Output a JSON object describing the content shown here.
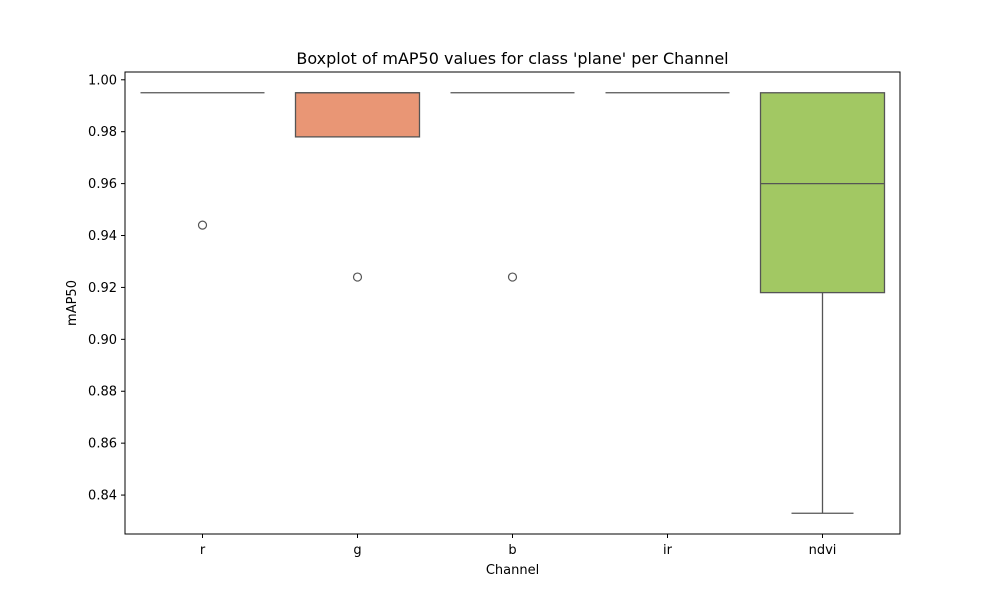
{
  "chart_data": {
    "type": "boxplot",
    "title": "Boxplot of mAP50 values for class 'plane' per Channel",
    "xlabel": "Channel",
    "ylabel": "mAP50",
    "categories": [
      "r",
      "g",
      "b",
      "ir",
      "ndvi"
    ],
    "ylim": [
      0.825,
      1.003
    ],
    "yticks": [
      0.84,
      0.86,
      0.88,
      0.9,
      0.92,
      0.94,
      0.96,
      0.98,
      1.0
    ],
    "ytick_labels": [
      "0.84",
      "0.86",
      "0.88",
      "0.90",
      "0.92",
      "0.94",
      "0.96",
      "0.98",
      "1.00"
    ],
    "grid": false,
    "boxes": [
      {
        "category": "r",
        "whisker_low": 0.995,
        "q1": 0.995,
        "median": 0.995,
        "q3": 0.995,
        "whisker_high": 0.995,
        "outliers": [
          0.944
        ],
        "color": "#66c2a5"
      },
      {
        "category": "g",
        "whisker_low": 0.978,
        "q1": 0.978,
        "median": 0.995,
        "q3": 0.995,
        "whisker_high": 0.995,
        "outliers": [
          0.924
        ],
        "color": "#e99675"
      },
      {
        "category": "b",
        "whisker_low": 0.995,
        "q1": 0.995,
        "median": 0.995,
        "q3": 0.995,
        "whisker_high": 0.995,
        "outliers": [
          0.924
        ],
        "color": "#8da0cb"
      },
      {
        "category": "ir",
        "whisker_low": 0.995,
        "q1": 0.995,
        "median": 0.995,
        "q3": 0.995,
        "whisker_high": 0.995,
        "outliers": [],
        "color": "#e78ac3"
      },
      {
        "category": "ndvi",
        "whisker_low": 0.833,
        "q1": 0.918,
        "median": 0.96,
        "q3": 0.995,
        "whisker_high": 0.995,
        "outliers": [],
        "color": "#a2c863"
      }
    ]
  }
}
